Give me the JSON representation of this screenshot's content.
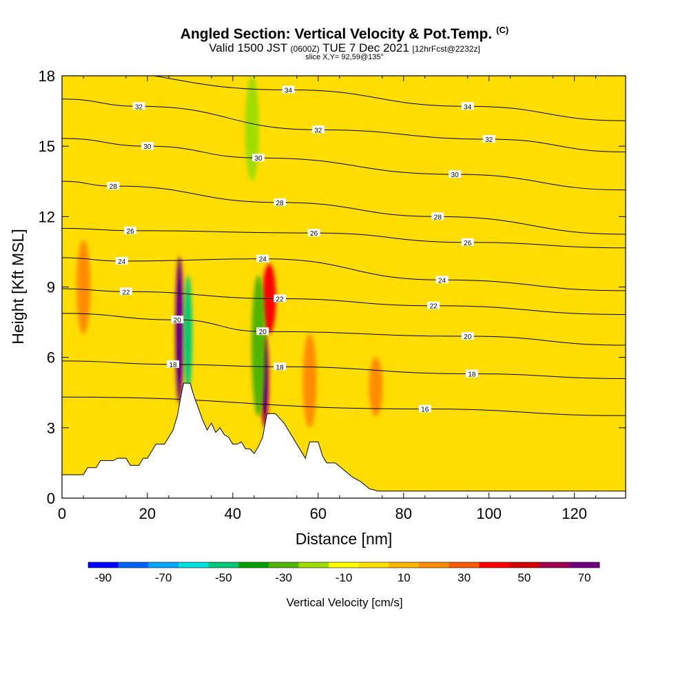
{
  "header": {
    "title": "Angled Section: Vertical Velocity & Pot.Temp.",
    "title_mark": "(C)",
    "valid_prefix": "Valid 1500 JST",
    "valid_zulu": "(0600Z)",
    "valid_date": "TUE 7 Dec 2021",
    "forecast": "[12hrFcst@2232z]",
    "slice": "slice X,Y= 92,59@135°"
  },
  "chart_data": {
    "type": "heatmap",
    "xlabel": "Distance [nm]",
    "ylabel": "Height [Kft MSL]",
    "xlim": [
      0,
      132
    ],
    "ylim": [
      0,
      18
    ],
    "x_ticks": [
      0,
      20,
      40,
      60,
      80,
      100,
      120
    ],
    "y_ticks": [
      0,
      3,
      6,
      9,
      12,
      15,
      18
    ],
    "background_value_color": "#ffdd00",
    "colorbar": {
      "label": "Vertical Velocity [cm/s]",
      "tick_labels": [
        -90,
        -70,
        -50,
        -30,
        -10,
        10,
        30,
        50,
        70
      ],
      "colors": [
        "#0000ff",
        "#0064ff",
        "#00a5ff",
        "#00e0e0",
        "#00c878",
        "#00a000",
        "#50b400",
        "#a0dc00",
        "#ffff00",
        "#ffdd00",
        "#ffb400",
        "#ff8c00",
        "#ff5a00",
        "#ff0000",
        "#d00000",
        "#a00050",
        "#700080"
      ]
    },
    "terrain": [
      [
        0,
        1.0
      ],
      [
        5,
        1.0
      ],
      [
        6,
        1.3
      ],
      [
        8,
        1.3
      ],
      [
        9,
        1.6
      ],
      [
        12,
        1.6
      ],
      [
        13,
        1.7
      ],
      [
        15,
        1.7
      ],
      [
        16,
        1.4
      ],
      [
        18,
        1.4
      ],
      [
        19,
        1.7
      ],
      [
        20,
        1.7
      ],
      [
        21,
        2.0
      ],
      [
        22,
        2.3
      ],
      [
        24,
        2.3
      ],
      [
        25,
        2.6
      ],
      [
        26,
        2.9
      ],
      [
        27,
        3.5
      ],
      [
        28,
        4.5
      ],
      [
        28.5,
        4.9
      ],
      [
        30,
        4.9
      ],
      [
        31,
        4.3
      ],
      [
        32,
        3.8
      ],
      [
        33,
        3.3
      ],
      [
        34,
        2.9
      ],
      [
        35,
        3.2
      ],
      [
        36,
        2.8
      ],
      [
        37,
        3.0
      ],
      [
        38,
        2.7
      ],
      [
        39,
        2.6
      ],
      [
        40,
        2.3
      ],
      [
        41,
        2.3
      ],
      [
        42,
        2.4
      ],
      [
        43,
        2.1
      ],
      [
        44,
        2.1
      ],
      [
        45,
        1.9
      ],
      [
        46,
        2.2
      ],
      [
        47,
        2.6
      ],
      [
        47.5,
        3.1
      ],
      [
        48,
        3.6
      ],
      [
        50,
        3.6
      ],
      [
        51,
        3.4
      ],
      [
        52,
        3.2
      ],
      [
        53,
        2.9
      ],
      [
        54,
        2.6
      ],
      [
        55,
        2.3
      ],
      [
        56,
        2.0
      ],
      [
        57,
        1.7
      ],
      [
        58,
        2.4
      ],
      [
        60,
        2.4
      ],
      [
        61,
        1.8
      ],
      [
        62,
        1.5
      ],
      [
        64,
        1.5
      ],
      [
        66,
        1.2
      ],
      [
        68,
        0.9
      ],
      [
        70,
        0.7
      ],
      [
        72,
        0.4
      ],
      [
        74,
        0.3
      ],
      [
        132,
        0.3
      ]
    ],
    "isentropes": [
      {
        "label": "34",
        "label_at": [
          [
            53,
            17.4
          ],
          [
            95,
            16.7
          ]
        ]
      },
      {
        "label": "32",
        "label_at": [
          [
            18,
            16.7
          ],
          [
            60,
            15.7
          ],
          [
            100,
            15.3
          ]
        ]
      },
      {
        "label": "30",
        "label_at": [
          [
            20,
            15.0
          ],
          [
            46,
            14.5
          ],
          [
            92,
            13.8
          ]
        ]
      },
      {
        "label": "28",
        "label_at": [
          [
            12,
            13.3
          ],
          [
            51,
            12.6
          ],
          [
            88,
            12.0
          ]
        ]
      },
      {
        "label": "26",
        "label_at": [
          [
            16,
            11.4
          ],
          [
            59,
            11.3
          ],
          [
            95,
            10.9
          ]
        ]
      },
      {
        "label": "24",
        "label_at": [
          [
            14,
            10.1
          ],
          [
            47,
            10.2
          ],
          [
            89,
            9.3
          ]
        ]
      },
      {
        "label": "22",
        "label_at": [
          [
            15,
            8.8
          ],
          [
            51,
            8.5
          ],
          [
            87,
            8.2
          ]
        ]
      },
      {
        "label": "20",
        "label_at": [
          [
            27,
            7.6
          ],
          [
            47,
            7.1
          ],
          [
            95,
            6.9
          ]
        ]
      },
      {
        "label": "18",
        "label_at": [
          [
            26,
            5.7
          ],
          [
            51,
            5.6
          ],
          [
            96,
            5.3
          ]
        ]
      },
      {
        "label": "16",
        "label_at": [
          [
            85,
            3.8
          ]
        ]
      }
    ],
    "velocity_features": [
      {
        "x": 27.5,
        "y0": 4.0,
        "y1": 10.3,
        "value": 70
      },
      {
        "x": 29.5,
        "y0": 4.5,
        "y1": 9.5,
        "value": -50
      },
      {
        "x": 47.5,
        "y0": 3.0,
        "y1": 7.0,
        "value": 60
      },
      {
        "x": 48.5,
        "y0": 7.0,
        "y1": 10.0,
        "value": 40
      },
      {
        "x": 46.0,
        "y0": 3.5,
        "y1": 9.5,
        "value": -30
      },
      {
        "x": 44.5,
        "y0": 13.5,
        "y1": 18.0,
        "value": -15
      },
      {
        "x": 5.0,
        "y0": 7.0,
        "y1": 11.0,
        "value": 25
      },
      {
        "x": 58.0,
        "y0": 3.0,
        "y1": 7.0,
        "value": 20
      },
      {
        "x": 73.5,
        "y0": 3.5,
        "y1": 6.0,
        "value": 25
      }
    ]
  }
}
